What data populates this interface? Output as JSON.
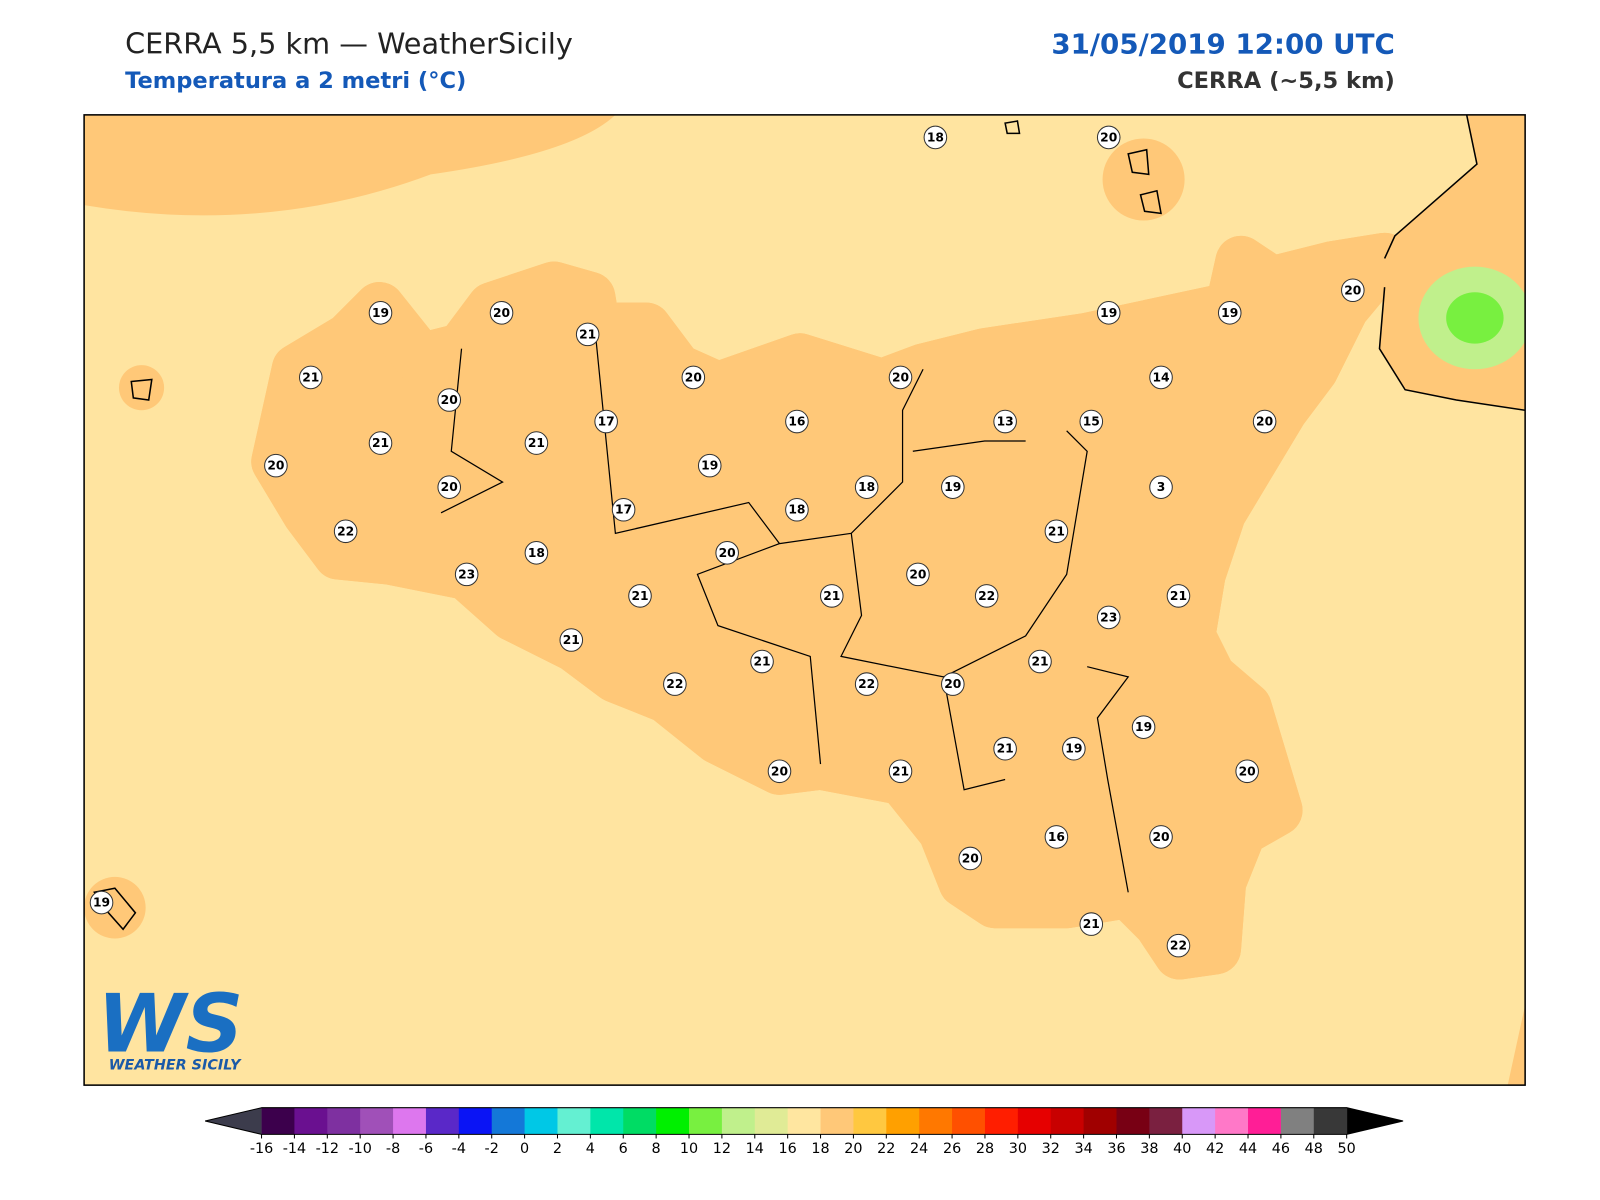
{
  "header": {
    "title": "CERRA 5,5 km — WeatherSicily",
    "subtitle": "Temperatura a 2 metri (°C)",
    "date": "31/05/2019 12:00 UTC",
    "model": "CERRA (~5,5 km)"
  },
  "logo": {
    "mark": "WS",
    "name": "WEATHER SICILY"
  },
  "stations": [
    18,
    20,
    19,
    20,
    21,
    19,
    19,
    20,
    21,
    20,
    20,
    20,
    14,
    17,
    16,
    13,
    15,
    20,
    21,
    21,
    20,
    19,
    20,
    18,
    19,
    3,
    17,
    18,
    22,
    21,
    18,
    20,
    23,
    20,
    21,
    21,
    22,
    21,
    23,
    21,
    21,
    21,
    22,
    22,
    20,
    19,
    21,
    19,
    20,
    21,
    20,
    16,
    20,
    20,
    19,
    21,
    22
  ],
  "colorbar": {
    "ticks": [
      -16,
      -14,
      -12,
      -10,
      -8,
      -6,
      -4,
      -2,
      0,
      2,
      4,
      6,
      8,
      10,
      12,
      14,
      16,
      18,
      20,
      22,
      24,
      26,
      28,
      30,
      32,
      34,
      36,
      38,
      40,
      42,
      44,
      46,
      48,
      50
    ],
    "colors": [
      "#3c004c",
      "#6a1090",
      "#7e30a0",
      "#a050b8",
      "#dd77ee",
      "#5a28c8",
      "#0a14f5",
      "#1478d8",
      "#00c8e6",
      "#64f0d2",
      "#00e6aa",
      "#00dc64",
      "#00f000",
      "#78f040",
      "#c0f08c",
      "#e0eb96",
      "#ffe6a0",
      "#ffc878",
      "#ffc840",
      "#ffa000",
      "#ff7800",
      "#ff5000",
      "#ff1e00",
      "#e60000",
      "#c80000",
      "#a00000",
      "#780014",
      "#7a2040",
      "#d898f8",
      "#ff78c8",
      "#ff1e96",
      "#808080",
      "#383838"
    ],
    "under_color": "#3c3c4c",
    "over_color": "#000000"
  }
}
